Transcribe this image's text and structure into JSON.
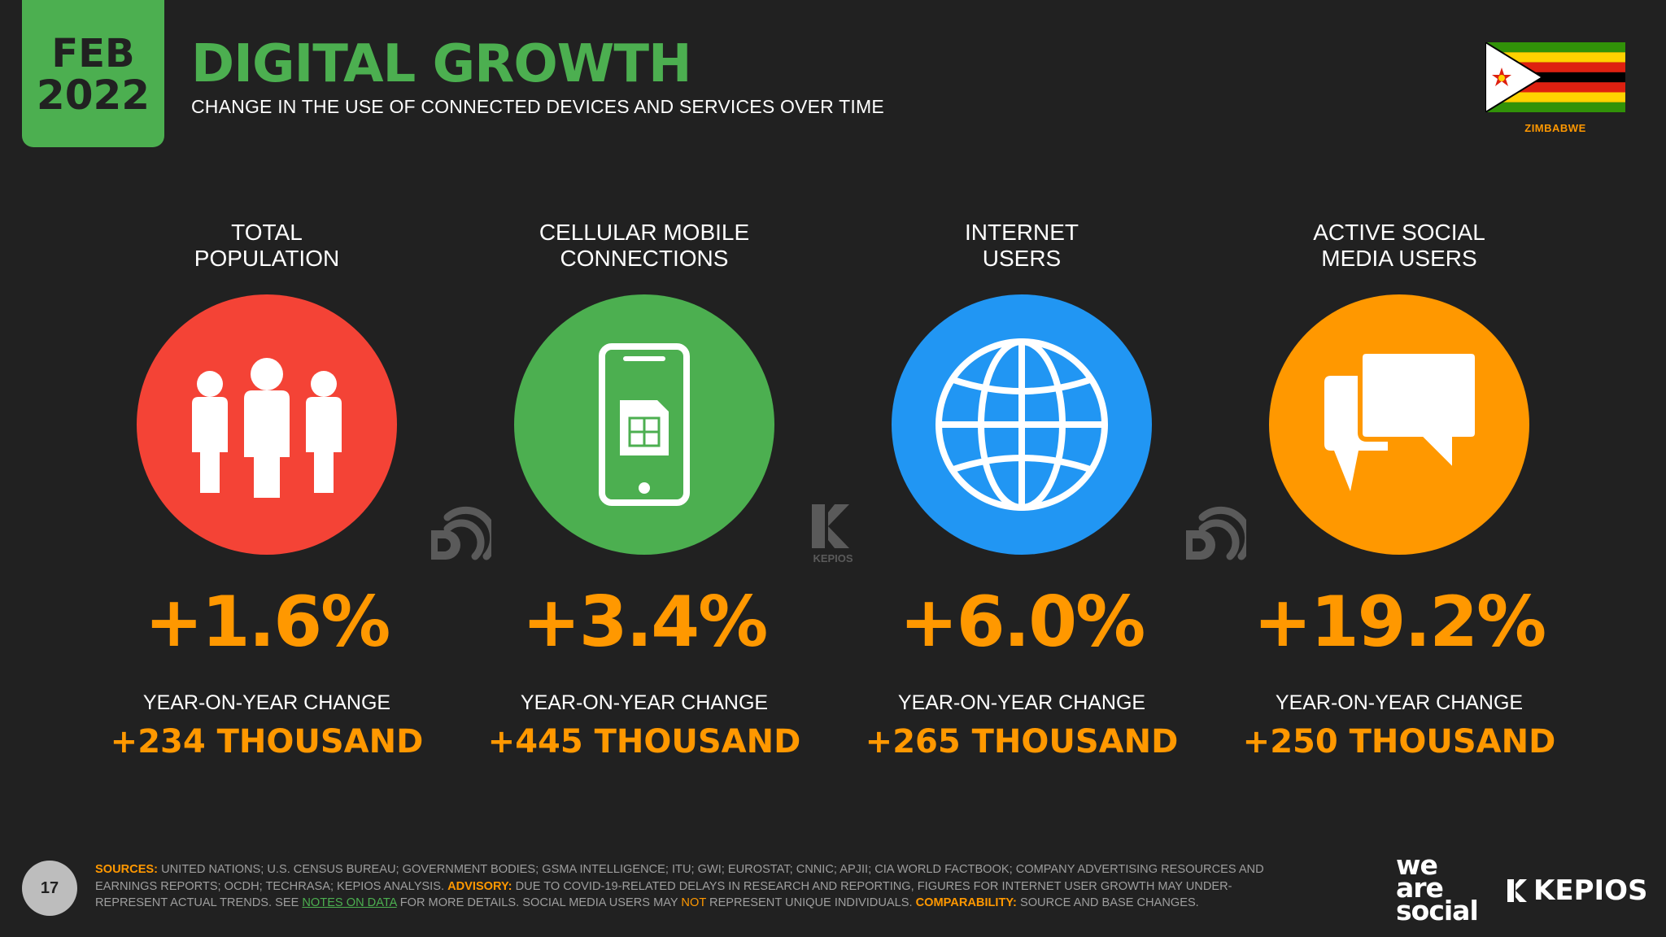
{
  "header": {
    "month": "FEB",
    "year": "2022",
    "title": "DIGITAL GROWTH",
    "subtitle": "CHANGE IN THE USE OF CONNECTED DEVICES AND SERVICES OVER TIME",
    "country": "ZIMBABWE"
  },
  "stats": [
    {
      "label_line1": "TOTAL",
      "label_line2": "POPULATION",
      "icon": "people-icon",
      "color": "#f44336",
      "change_pct": "+1.6%",
      "yoy_label": "YEAR-ON-YEAR CHANGE",
      "change_abs": "+234 THOUSAND"
    },
    {
      "label_line1": "CELLULAR MOBILE",
      "label_line2": "CONNECTIONS",
      "icon": "mobile-phone-icon",
      "color": "#4caf50",
      "change_pct": "+3.4%",
      "yoy_label": "YEAR-ON-YEAR CHANGE",
      "change_abs": "+445 THOUSAND"
    },
    {
      "label_line1": "INTERNET",
      "label_line2": "USERS",
      "icon": "globe-icon",
      "color": "#2196f3",
      "change_pct": "+6.0%",
      "yoy_label": "YEAR-ON-YEAR CHANGE",
      "change_abs": "+265 THOUSAND"
    },
    {
      "label_line1": "ACTIVE SOCIAL",
      "label_line2": "MEDIA USERS",
      "icon": "chat-bubbles-icon",
      "color": "#ff9800",
      "change_pct": "+19.2%",
      "yoy_label": "YEAR-ON-YEAR CHANGE",
      "change_abs": "+250 THOUSAND"
    }
  ],
  "connectors": {
    "kepios_small": "KEPIOS"
  },
  "footer": {
    "page_number": "17",
    "sources_label": "SOURCES:",
    "sources_text": "UNITED NATIONS; U.S. CENSUS BUREAU; GOVERNMENT BODIES; GSMA INTELLIGENCE; ITU; GWI; EUROSTAT; CNNIC; APJII; CIA WORLD FACTBOOK; COMPANY ADVERTISING RESOURCES AND EARNINGS REPORTS; OCDH; TECHRASA; KEPIOS ANALYSIS.",
    "advisory_label": "ADVISORY:",
    "advisory_text_1": "DUE TO COVID-19-RELATED DELAYS IN RESEARCH AND REPORTING, FIGURES FOR INTERNET USER GROWTH MAY UNDER-REPRESENT ACTUAL TRENDS. SEE",
    "notes_link": "NOTES ON DATA",
    "advisory_text_2": "FOR MORE DETAILS. SOCIAL MEDIA USERS MAY",
    "not_word": "NOT",
    "advisory_text_3": "REPRESENT UNIQUE INDIVIDUALS.",
    "comparability_label": "COMPARABILITY:",
    "comparability_text": "SOURCE AND BASE CHANGES.",
    "logo_we": "we",
    "logo_are": "are",
    "logo_social": "social",
    "logo_kepios": "KEPIOS"
  }
}
